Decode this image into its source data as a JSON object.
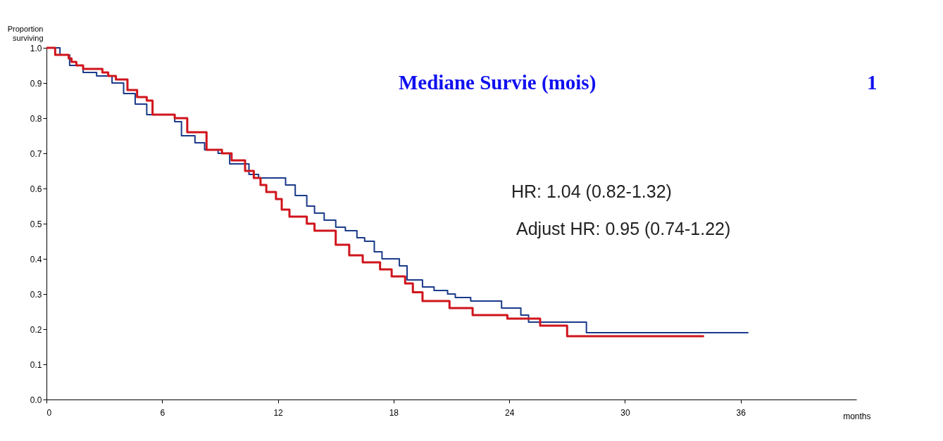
{
  "chart_data": {
    "type": "step",
    "xlabel": "months",
    "ylabel": "Proportion surviving",
    "xlim": [
      0,
      42
    ],
    "xticks": [
      0,
      6,
      12,
      18,
      24,
      30,
      36
    ],
    "ylim": [
      0,
      1
    ],
    "yticks": [
      {
        "value": 0,
        "label": "0.0"
      },
      0.1,
      0.2,
      0.3,
      0.4,
      0.5,
      0.6,
      0.7,
      0.8,
      0.9,
      {
        "value": 1,
        "label": "1.0"
      }
    ],
    "grid": false,
    "marker": "none",
    "line_style": "solid",
    "series": [
      {
        "color": "#1a3a8a",
        "x": [
          0,
          0.7,
          1.2,
          1.9,
          2.6,
          3.4,
          4.0,
          4.6,
          5.2,
          6.65,
          7.0,
          7.7,
          8.2,
          8.9,
          9.5,
          10.5,
          11.0,
          12.4,
          12.9,
          13.5,
          13.9,
          14.4,
          15.0,
          15.5,
          16.1,
          16.5,
          17.0,
          17.4,
          18.3,
          18.7,
          19.5,
          20.1,
          20.8,
          21.2,
          22.0,
          23.6,
          24.6,
          25.0,
          28.0,
          36.4
        ],
        "values": [
          1.0,
          0.98,
          0.95,
          0.93,
          0.92,
          0.9,
          0.87,
          0.84,
          0.81,
          0.79,
          0.75,
          0.73,
          0.71,
          0.7,
          0.67,
          0.64,
          0.63,
          0.61,
          0.58,
          0.55,
          0.53,
          0.51,
          0.49,
          0.48,
          0.46,
          0.45,
          0.42,
          0.4,
          0.38,
          0.34,
          0.32,
          0.31,
          0.3,
          0.29,
          0.28,
          0.26,
          0.24,
          0.22,
          0.19,
          0.19
        ]
      },
      {
        "color": "#d0141c",
        "x": [
          0,
          0.45,
          1.15,
          1.3,
          1.55,
          1.9,
          2.9,
          3.2,
          3.6,
          4.2,
          4.7,
          5.2,
          5.5,
          6.65,
          7.3,
          8.3,
          9.1,
          9.6,
          10.3,
          10.75,
          11.1,
          11.4,
          11.9,
          12.2,
          12.6,
          13.5,
          13.9,
          15.0,
          15.7,
          16.4,
          17.3,
          17.9,
          18.6,
          19.0,
          19.5,
          20.9,
          22.1,
          23.9,
          25.6,
          27.0,
          34.1
        ],
        "values": [
          1.0,
          0.98,
          0.97,
          0.96,
          0.95,
          0.94,
          0.93,
          0.92,
          0.91,
          0.88,
          0.86,
          0.85,
          0.81,
          0.8,
          0.76,
          0.71,
          0.7,
          0.68,
          0.65,
          0.63,
          0.61,
          0.59,
          0.57,
          0.54,
          0.52,
          0.5,
          0.48,
          0.44,
          0.41,
          0.39,
          0.37,
          0.35,
          0.33,
          0.305,
          0.28,
          0.26,
          0.24,
          0.23,
          0.21,
          0.18,
          0.18
        ]
      }
    ],
    "annotations": [
      "HR: 1.04 (0.82-1.32)",
      "Adjust HR: 0.95 (0.74-1.22)",
      "Mediane Survie (mois)",
      "1"
    ]
  }
}
